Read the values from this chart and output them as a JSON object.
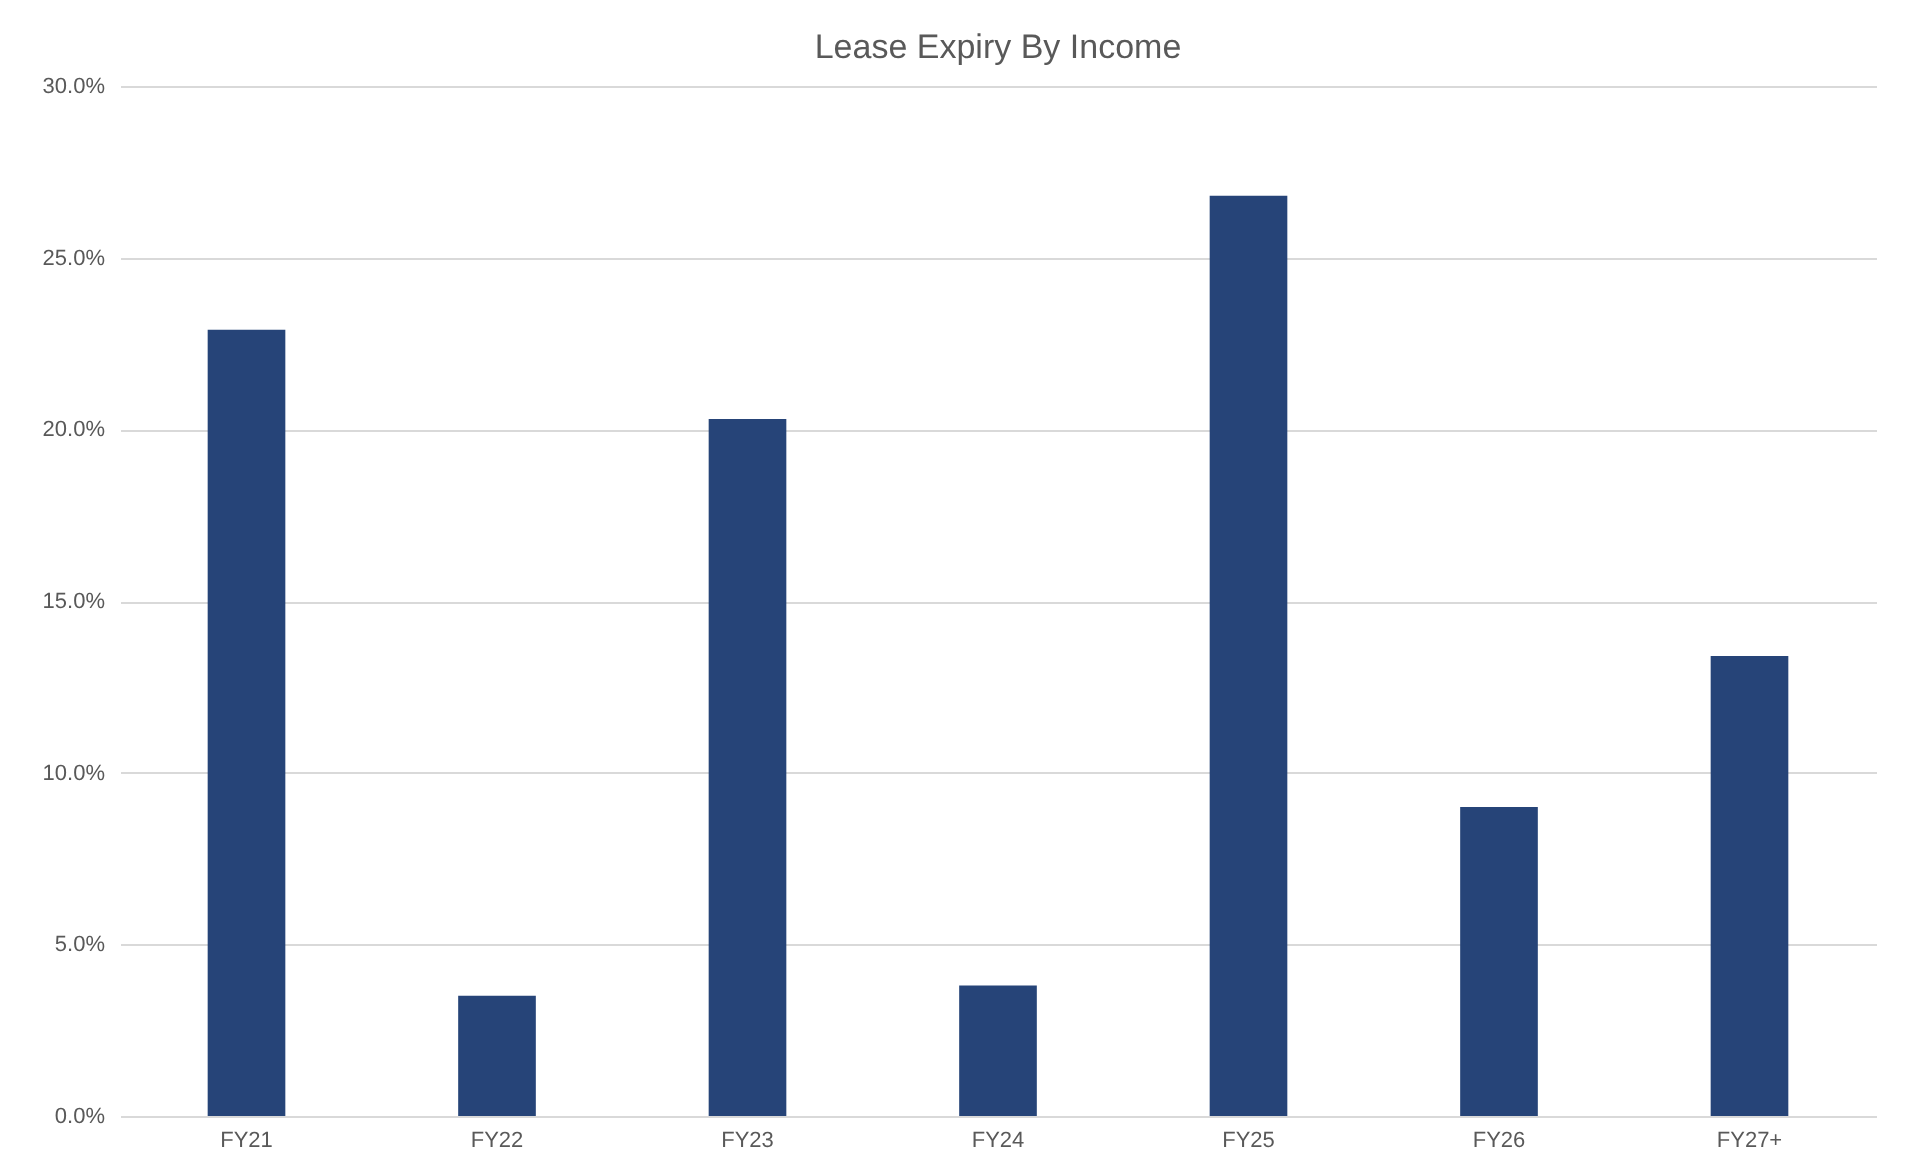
{
  "chart_data": {
    "type": "bar",
    "title": "Lease Expiry By Income",
    "categories": [
      "FY21",
      "FY22",
      "FY23",
      "FY24",
      "FY25",
      "FY26",
      "FY27+"
    ],
    "values": [
      22.9,
      3.5,
      20.3,
      3.8,
      26.8,
      9.0,
      13.4
    ],
    "color": "#264478",
    "ylim": [
      0,
      30
    ],
    "yticks": [
      {
        "value": 0,
        "label": "0.0%"
      },
      {
        "value": 5,
        "label": "5.0%"
      },
      {
        "value": 10,
        "label": "10.0%"
      },
      {
        "value": 15,
        "label": "15.0%"
      },
      {
        "value": 20,
        "label": "20.0%"
      },
      {
        "value": 25,
        "label": "25.0%"
      },
      {
        "value": 30,
        "label": "30.0%"
      }
    ],
    "grid": "y"
  }
}
